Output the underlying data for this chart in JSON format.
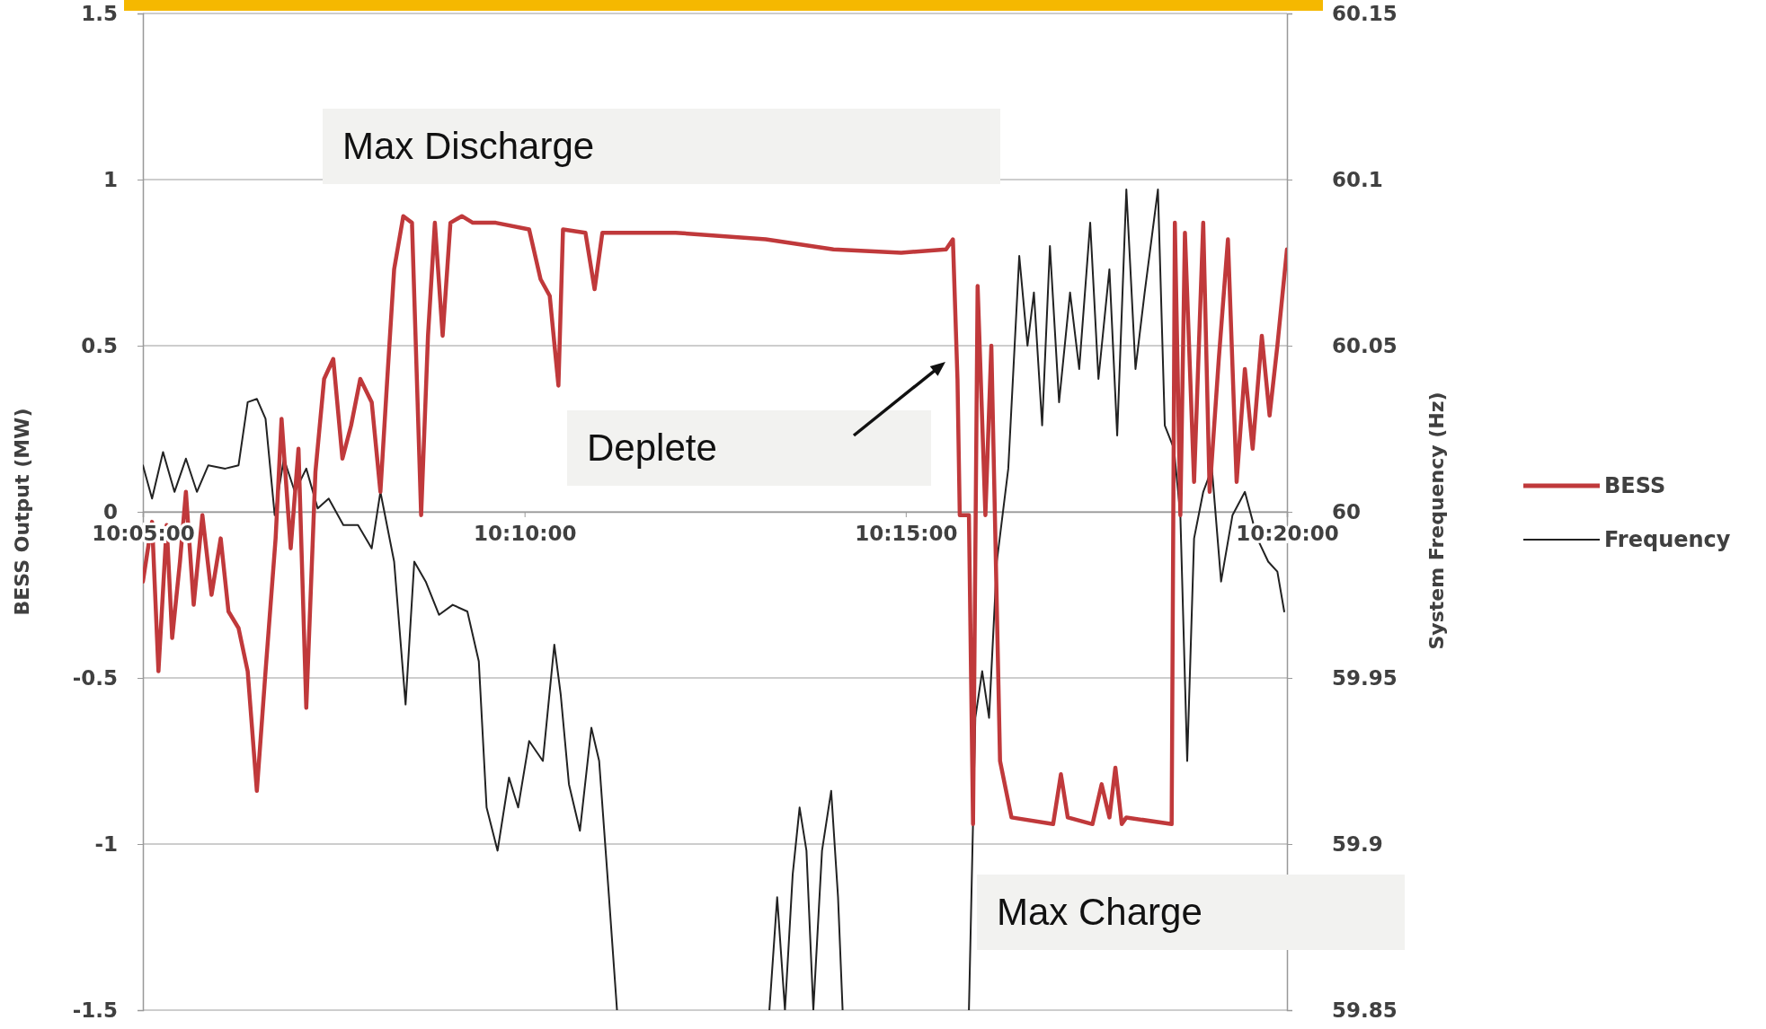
{
  "chart_data": {
    "type": "line",
    "ylabel": "BESS Output (MW)",
    "y2label": "System Frequency (Hz)",
    "xlim": [
      10.0833,
      10.3333
    ],
    "xticks": [
      {
        "value": 10.0833,
        "label": "10:05:00"
      },
      {
        "value": 10.1667,
        "label": "10:10:00"
      },
      {
        "value": 10.25,
        "label": "10:15:00"
      },
      {
        "value": 10.3333,
        "label": "10:20:00"
      }
    ],
    "ylim": [
      -1.5,
      1.5
    ],
    "yticks": [
      -1.5,
      -1,
      -0.5,
      0,
      0.5,
      1,
      1.5
    ],
    "y2lim": [
      59.85,
      60.15
    ],
    "y2ticks": [
      59.85,
      59.9,
      59.95,
      60,
      60.05,
      60.1,
      60.15
    ],
    "grid": "y",
    "legend": "right",
    "marker": "none",
    "line_style": "solid",
    "annotations": [
      "Max Discharge",
      "Deplete",
      "Max Charge"
    ],
    "series": [
      {
        "name": "BESS",
        "color": "#c0393b",
        "x": [
          10.0833,
          10.0853,
          10.0867,
          10.0885,
          10.0897,
          10.0914,
          10.0927,
          10.0944,
          10.0963,
          10.0983,
          10.1003,
          10.102,
          10.1042,
          10.1062,
          10.1082,
          10.1101,
          10.1123,
          10.1136,
          10.1156,
          10.1173,
          10.119,
          10.121,
          10.1229,
          10.1249,
          10.1269,
          10.1288,
          10.1308,
          10.1333,
          10.1352,
          10.1367,
          10.1382,
          10.1402,
          10.1421,
          10.1441,
          10.1456,
          10.1471,
          10.1488,
          10.1505,
          10.153,
          10.1554,
          10.1604,
          10.1677,
          10.1702,
          10.1722,
          10.1741,
          10.1751,
          10.18,
          10.182,
          10.1837,
          10.1997,
          10.2194,
          10.2342,
          10.249,
          10.2588,
          10.2603,
          10.2613,
          10.2618,
          10.2638,
          10.2647,
          10.2657,
          10.2674,
          10.2687,
          10.2706,
          10.2731,
          10.2822,
          10.2839,
          10.2854,
          10.2908,
          10.2928,
          10.2945,
          10.2958,
          10.2972,
          10.2982,
          10.3081,
          10.3088,
          10.31,
          10.311,
          10.313,
          10.315,
          10.3164,
          10.3184,
          10.3204,
          10.3223,
          10.3241,
          10.3258,
          10.3278,
          10.3295,
          10.3312,
          10.3333
        ],
        "values": [
          -0.21,
          -0.03,
          -0.48,
          -0.04,
          -0.38,
          -0.15,
          0.06,
          -0.28,
          -0.01,
          -0.25,
          -0.08,
          -0.3,
          -0.35,
          -0.48,
          -0.84,
          -0.48,
          -0.08,
          0.28,
          -0.11,
          0.19,
          -0.59,
          0.12,
          0.4,
          0.46,
          0.16,
          0.26,
          0.4,
          0.33,
          0.06,
          0.4,
          0.73,
          0.89,
          0.87,
          -0.01,
          0.53,
          0.87,
          0.53,
          0.87,
          0.89,
          0.87,
          0.87,
          0.85,
          0.7,
          0.65,
          0.38,
          0.85,
          0.84,
          0.67,
          0.84,
          0.84,
          0.82,
          0.79,
          0.78,
          0.79,
          0.82,
          0.4,
          -0.01,
          -0.01,
          -0.94,
          0.68,
          -0.01,
          0.5,
          -0.75,
          -0.92,
          -0.94,
          -0.79,
          -0.92,
          -0.94,
          -0.82,
          -0.92,
          -0.77,
          -0.94,
          -0.92,
          -0.94,
          0.87,
          -0.01,
          0.84,
          0.09,
          0.87,
          0.06,
          0.46,
          0.82,
          0.09,
          0.43,
          0.19,
          0.53,
          0.29,
          0.5,
          0.79
        ]
      },
      {
        "name": "Frequency",
        "color": "#222222",
        "axis": "y2",
        "x": [
          10.0833,
          10.0853,
          10.0877,
          10.0902,
          10.0927,
          10.0951,
          10.0976,
          10.1013,
          10.1042,
          10.1062,
          10.1082,
          10.1101,
          10.1121,
          10.1141,
          10.1165,
          10.119,
          10.1215,
          10.1239,
          10.1271,
          10.1303,
          10.1333,
          10.1352,
          10.1382,
          10.1407,
          10.1426,
          10.1451,
          10.148,
          10.151,
          10.1542,
          10.1567,
          10.1584,
          10.1608,
          10.1633,
          10.1653,
          10.1677,
          10.1707,
          10.1732,
          10.1746,
          10.1764,
          10.1788,
          10.1813,
          10.183,
          10.185,
          10.1869,
          10.2034,
          10.2202,
          10.2219,
          10.2236,
          10.2253,
          10.2268,
          10.2283,
          10.2298,
          10.2317,
          10.2337,
          10.2352,
          10.2362,
          10.249,
          10.2638,
          10.2652,
          10.2667,
          10.2682,
          10.2699,
          10.2724,
          10.2748,
          10.2766,
          10.278,
          10.2798,
          10.2815,
          10.2835,
          10.2859,
          10.2879,
          10.2903,
          10.2921,
          10.2945,
          10.2962,
          10.2982,
          10.3002,
          10.3022,
          10.3051,
          10.3066,
          10.3086,
          10.31,
          10.3115,
          10.313,
          10.315,
          10.3169,
          10.3189,
          10.3214,
          10.3241,
          10.3268,
          10.3292,
          10.3312,
          10.3327
        ],
        "values": [
          60.014,
          60.004,
          60.018,
          60.006,
          60.016,
          60.006,
          60.014,
          60.013,
          60.014,
          60.033,
          60.034,
          60.028,
          59.999,
          60.016,
          60.006,
          60.013,
          60.001,
          60.004,
          59.996,
          59.996,
          59.989,
          60.006,
          59.985,
          59.942,
          59.985,
          59.979,
          59.969,
          59.972,
          59.97,
          59.955,
          59.911,
          59.898,
          59.92,
          59.911,
          59.931,
          59.925,
          59.96,
          59.945,
          59.918,
          59.904,
          59.935,
          59.925,
          59.887,
          59.85,
          null,
          59.85,
          59.884,
          59.85,
          59.891,
          59.911,
          59.898,
          59.85,
          59.898,
          59.916,
          59.884,
          59.85,
          null,
          59.85,
          59.938,
          59.952,
          59.938,
          59.985,
          60.013,
          60.077,
          60.05,
          60.066,
          60.026,
          60.08,
          60.033,
          60.066,
          60.043,
          60.087,
          60.04,
          60.073,
          60.023,
          60.097,
          60.043,
          60.066,
          60.097,
          60.026,
          60.019,
          59.999,
          59.925,
          59.992,
          60.006,
          60.013,
          59.979,
          59.999,
          60.006,
          59.992,
          59.985,
          59.982,
          59.97
        ]
      }
    ]
  }
}
